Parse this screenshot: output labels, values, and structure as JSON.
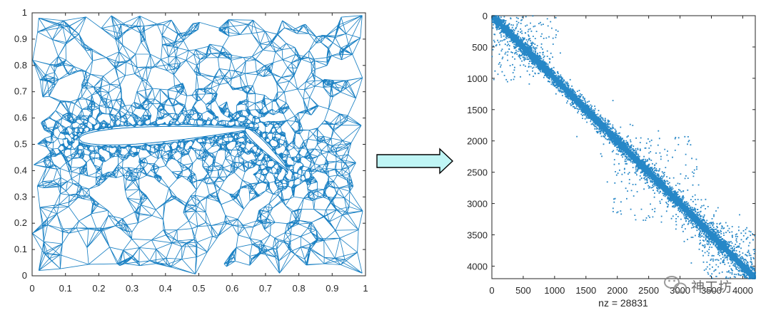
{
  "chart_data": [
    {
      "type": "scatter",
      "subtype": "triangular-mesh",
      "title": "",
      "xlabel": "",
      "ylabel": "",
      "xlim": [
        0,
        1
      ],
      "ylim": [
        0,
        1
      ],
      "xticks": [
        "0",
        "0.1",
        "0.2",
        "0.3",
        "0.4",
        "0.5",
        "0.6",
        "0.7",
        "0.8",
        "0.9",
        "1"
      ],
      "yticks": [
        "0",
        "0.1",
        "0.2",
        "0.3",
        "0.4",
        "0.5",
        "0.6",
        "0.7",
        "0.8",
        "0.9",
        "1"
      ],
      "mesh_color": "#0072BD",
      "main_element": {
        "chord_start": [
          0.14,
          0.52
        ],
        "chord_end": [
          0.67,
          0.56
        ]
      },
      "flap_element": {
        "chord_start": [
          0.64,
          0.56
        ],
        "chord_end": [
          0.77,
          0.4
        ]
      }
    },
    {
      "type": "spy",
      "title": "",
      "xlabel": "nz = 28831",
      "ylabel": "",
      "xlim": [
        0,
        4200
      ],
      "ylim": [
        4200,
        0
      ],
      "xticks": [
        0,
        500,
        1000,
        1500,
        2000,
        2500,
        3000,
        3500,
        4000
      ],
      "yticks": [
        0,
        500,
        1000,
        1500,
        2000,
        2500,
        3000,
        3500,
        4000
      ],
      "nz": 28831,
      "marker_color": "#0072BD",
      "band_halfwidth": 45,
      "scatter_blocks": [
        {
          "rows": [
            0,
            700
          ],
          "cols": [
            0,
            1100
          ],
          "density": "sparse"
        },
        {
          "rows": [
            1900,
            3300
          ],
          "cols": [
            1900,
            3300
          ],
          "density": "sparse"
        },
        {
          "rows": [
            3300,
            4200
          ],
          "cols": [
            3300,
            4200
          ],
          "density": "medium"
        }
      ]
    }
  ],
  "arrow": {
    "fill": "#bff5f5",
    "stroke": "#000000"
  },
  "watermark": {
    "text": "神工坊",
    "icon": "wechat-icon"
  }
}
